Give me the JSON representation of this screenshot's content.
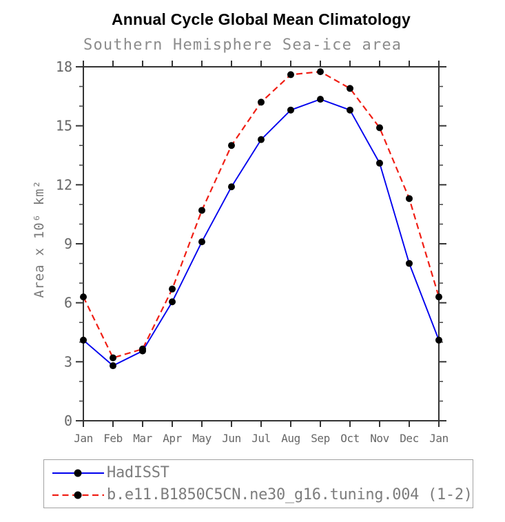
{
  "chart_data": {
    "type": "line",
    "title": "Annual Cycle Global Mean Climatology",
    "subtitle": "Southern Hemisphere Sea-ice area",
    "ylabel": "Area x 10⁶ km²",
    "x_categories": [
      "Jan",
      "Feb",
      "Mar",
      "Apr",
      "May",
      "Jun",
      "Jul",
      "Aug",
      "Sep",
      "Oct",
      "Nov",
      "Dec",
      "Jan"
    ],
    "ylim": [
      0,
      18
    ],
    "yticks_major": [
      0,
      3,
      6,
      9,
      12,
      15,
      18
    ],
    "ytick_minor_step": 1,
    "grid": false,
    "legend_position": "bottom-left-box",
    "series": [
      {
        "name": "HadISST",
        "line_color": "#0000ee",
        "line_style": "solid",
        "marker": "filled-circle",
        "marker_color": "#000000",
        "values": [
          4.1,
          2.8,
          3.55,
          6.05,
          9.1,
          11.9,
          14.3,
          15.8,
          16.35,
          15.8,
          13.1,
          8.0,
          4.1
        ]
      },
      {
        "name": "b.e11.B1850C5CN.ne30_g16.tuning.004 (1-2)",
        "line_color": "#f01e14",
        "line_style": "dashed",
        "marker": "filled-circle",
        "marker_color": "#000000",
        "values": [
          6.3,
          3.2,
          3.65,
          6.7,
          10.7,
          14.0,
          16.2,
          17.6,
          17.75,
          16.9,
          14.9,
          11.3,
          6.3
        ]
      }
    ]
  },
  "colors": {
    "axis": "#333333",
    "minor_tick": "#4a4a4a",
    "tick_label": "#666666",
    "subtitle_text": "#8c8c8c",
    "y_axis_title_text": "#7a7a7a",
    "legend_text": "#7d7d7d",
    "legend_border": "#a2a2a2",
    "series_blue": "#0000ee",
    "series_red": "#f01e14",
    "marker": "#000000"
  }
}
